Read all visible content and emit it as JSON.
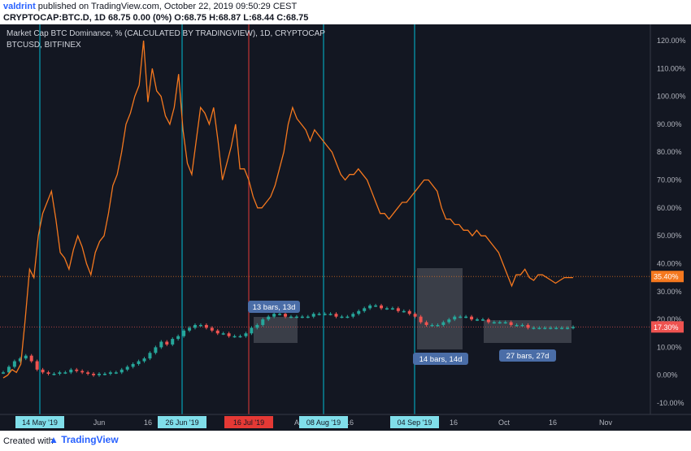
{
  "header": {
    "line1_author": "valdrint",
    "line1_rest": " published on TradingView.com, October 22, 2019 09:50:29 CEST",
    "line2": "CRYPTOCAP:BTC.D, 1D 68.75 0.00 (0%) O:68.75 H:68.87 L:68.44 C:68.75"
  },
  "legend": {
    "line1": "Market Cap BTC Dominance, % (CALCULATED BY TRADINGVIEW), 1D, CRYPTOCAP",
    "line2": "BTCUSD, BITFINEX"
  },
  "footer": {
    "created": "Created with",
    "brand": "TradingView"
  },
  "colors": {
    "background": "#131722",
    "btcusd": "#f5781e",
    "candle_up": "#26a69a",
    "candle_down": "#ef5350",
    "vline_cyan": "#00bcd4",
    "vline_red": "#e53935"
  },
  "chart_data": {
    "type": "line",
    "y_axis": {
      "min": -10,
      "max": 120,
      "unit": "%",
      "ticks": [
        "120.00%",
        "110.00%",
        "100.00%",
        "90.00%",
        "80.00%",
        "70.00%",
        "60.00%",
        "50.00%",
        "40.00%",
        "30.00%",
        "20.00%",
        "10.00%",
        "0.00%",
        "-10.00%"
      ]
    },
    "x_ticks": [
      "Jun",
      "16",
      "Jul",
      "16",
      "Aug",
      "16",
      "Sep",
      "16",
      "Oct",
      "16",
      "Nov"
    ],
    "series": [
      {
        "name": "BTCUSD, BITFINEX",
        "last_label": "35.40%",
        "values": [
          -1,
          0,
          2,
          1,
          4,
          20,
          38,
          35,
          50,
          58,
          62,
          66,
          56,
          44,
          42,
          38,
          45,
          50,
          46,
          40,
          36,
          44,
          48,
          50,
          58,
          68,
          72,
          80,
          90,
          94,
          100,
          104,
          120,
          98,
          110,
          102,
          100,
          93,
          90,
          96,
          108,
          88,
          76,
          72,
          84,
          96,
          94,
          90,
          96,
          84,
          70,
          76,
          82,
          90,
          74,
          74,
          70,
          64,
          60,
          60,
          62,
          64,
          68,
          74,
          80,
          90,
          96,
          92,
          90,
          88,
          84,
          88,
          86,
          84,
          82,
          80,
          76,
          72,
          70,
          72,
          72,
          74,
          72,
          70,
          66,
          62,
          58,
          58,
          56,
          58,
          60,
          62,
          62,
          64,
          66,
          68,
          70,
          70,
          68,
          66,
          60,
          56,
          56,
          54,
          54,
          52,
          52,
          50,
          52,
          50,
          50,
          48,
          46,
          44,
          40,
          36,
          32,
          36,
          36,
          38,
          35,
          34,
          36,
          36,
          35,
          34,
          33,
          34,
          35,
          35,
          35
        ]
      },
      {
        "name": "CRYPTOCAP:BTC.D",
        "last_label": "17.30%",
        "values": [
          1,
          3,
          5,
          6,
          7,
          5,
          2,
          1,
          0.5,
          0.5,
          1,
          1,
          2,
          1.5,
          1,
          0.5,
          0,
          0.5,
          0.5,
          1,
          1,
          2,
          3,
          4,
          5,
          6,
          8,
          10,
          12,
          11,
          13,
          14,
          16,
          17,
          18,
          18,
          17,
          16,
          15,
          15,
          14,
          14,
          14,
          15,
          17,
          18,
          20,
          21,
          22,
          22,
          21,
          21,
          21,
          21,
          21,
          22,
          22,
          22,
          22,
          21,
          21,
          21,
          22,
          23,
          24,
          25,
          25,
          24,
          24,
          24,
          23,
          23,
          22,
          21,
          19,
          18,
          18,
          18,
          19,
          20,
          21,
          21,
          21,
          20,
          20,
          20,
          19,
          19,
          19,
          19,
          18,
          18,
          18,
          17,
          17,
          17,
          17,
          17,
          17,
          17,
          17,
          17.3
        ]
      }
    ],
    "markers": [
      {
        "label": "14 May '19",
        "color": "cyan"
      },
      {
        "label": "26 Jun '19",
        "color": "cyan"
      },
      {
        "label": "16 Jul '19",
        "color": "red"
      },
      {
        "label": "08 Aug '19",
        "color": "cyan"
      },
      {
        "label": "04 Sep '19",
        "color": "cyan"
      }
    ],
    "annotations": [
      {
        "label": "13 bars, 13d"
      },
      {
        "label": "14 bars, 14d"
      },
      {
        "label": "27 bars, 27d"
      }
    ],
    "grid": false
  }
}
